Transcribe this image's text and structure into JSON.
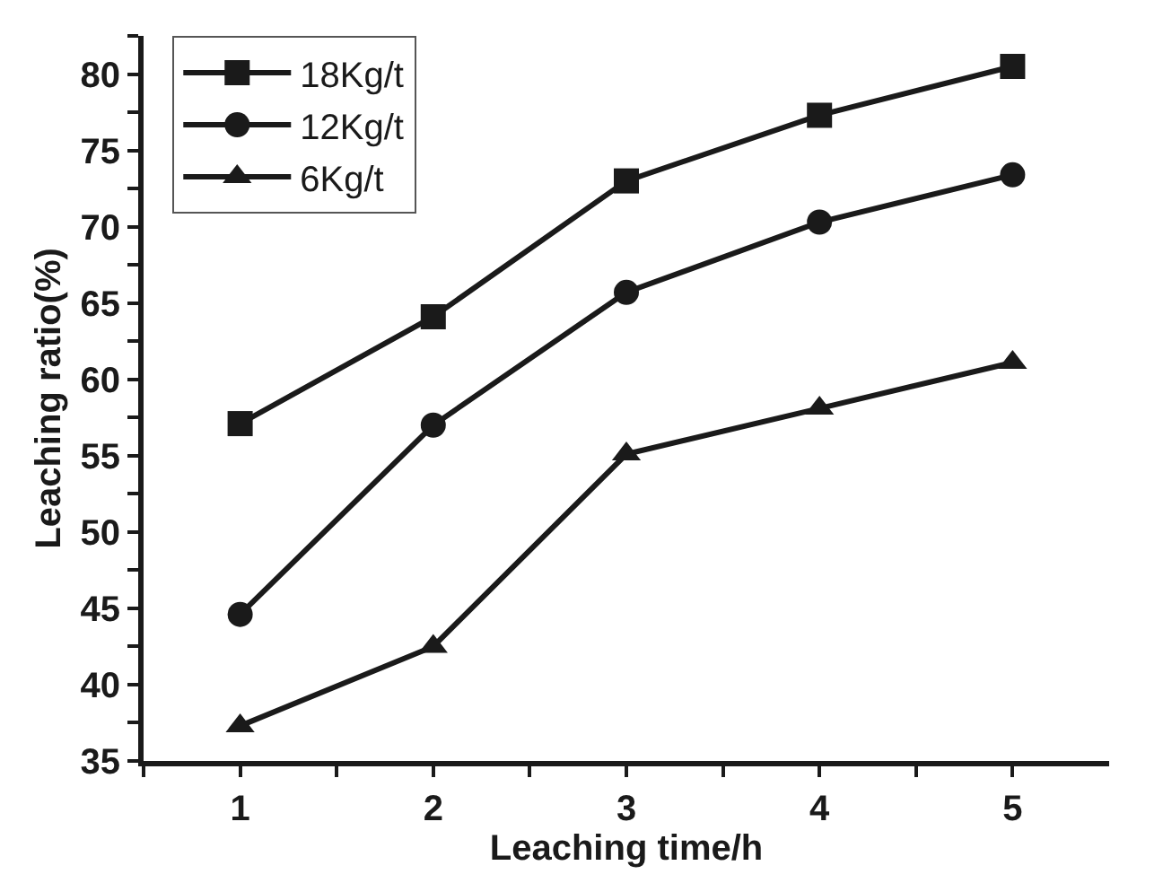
{
  "chart_data": {
    "type": "line",
    "xlabel": "Leaching time/h",
    "ylabel": "Leaching ratio(%)",
    "x": [
      1,
      2,
      3,
      4,
      5
    ],
    "series": [
      {
        "name": "18Kg/t",
        "color": "#1a1a1a",
        "marker": "square",
        "values": [
          57.1,
          64.1,
          73.0,
          77.3,
          80.5
        ]
      },
      {
        "name": "12Kg/t",
        "color": "#1a1a1a",
        "marker": "circle",
        "values": [
          44.6,
          57.0,
          65.7,
          70.3,
          73.4
        ]
      },
      {
        "name": "6Kg/t",
        "color": "#1a1a1a",
        "marker": "triangle",
        "values": [
          37.3,
          42.5,
          55.1,
          58.1,
          61.1
        ]
      }
    ],
    "xlim": [
      0.5,
      5.5
    ],
    "ylim": [
      35,
      82.5
    ],
    "xticks": [
      {
        "value": 0.5,
        "label": null
      },
      1,
      {
        "value": 1.5,
        "label": null
      },
      2,
      {
        "value": 2.5,
        "label": null
      },
      3,
      {
        "value": 3.5,
        "label": null
      },
      4,
      {
        "value": 4.5,
        "label": null
      },
      5
    ],
    "yticks": [
      35,
      {
        "value": 37.5,
        "label": null
      },
      40,
      {
        "value": 42.5,
        "label": null
      },
      45,
      {
        "value": 47.5,
        "label": null
      },
      50,
      {
        "value": 52.5,
        "label": null
      },
      55,
      {
        "value": 57.5,
        "label": null
      },
      60,
      {
        "value": 62.5,
        "label": null
      },
      65,
      {
        "value": 67.5,
        "label": null
      },
      70,
      {
        "value": 72.5,
        "label": null
      },
      75,
      {
        "value": 77.5,
        "label": null
      },
      80,
      {
        "value": 82.5,
        "label": null
      }
    ],
    "legend": "top left",
    "line_style": "solid"
  }
}
